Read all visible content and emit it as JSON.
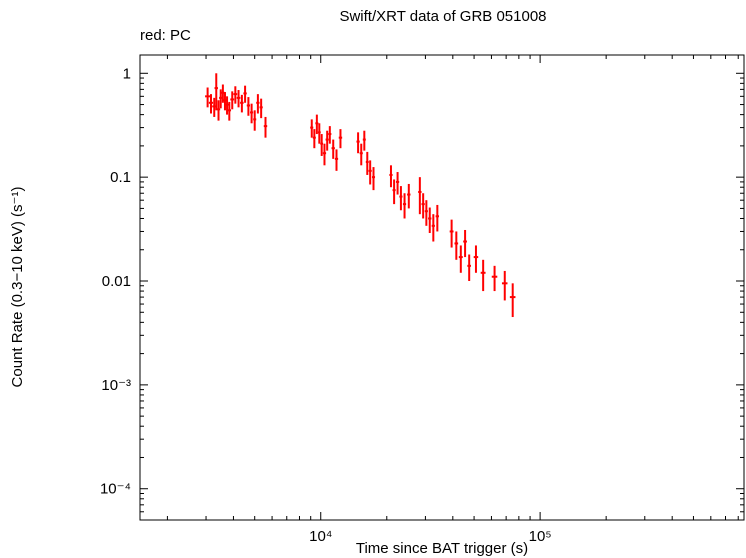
{
  "title": "Swift/XRT data of GRB 051008",
  "mode_label": "red: PC",
  "chart_data": {
    "type": "scatter",
    "title": "Swift/XRT data of GRB 051008",
    "xlabel": "Time since BAT trigger (s)",
    "ylabel": "Count Rate (0.3−10 keV) (s⁻¹)",
    "x_scale": "log",
    "y_scale": "log",
    "xlim": [
      1500,
      850000
    ],
    "ylim": [
      5e-05,
      1.5
    ],
    "grid": false,
    "legend_position": "top-left",
    "x_ticks": [
      {
        "value": 10000,
        "label": "10⁴"
      },
      {
        "value": 100000,
        "label": "10⁵"
      }
    ],
    "y_ticks": [
      {
        "value": 1,
        "label": "1"
      },
      {
        "value": 0.1,
        "label": "0.1"
      },
      {
        "value": 0.01,
        "label": "0.01"
      },
      {
        "value": 0.001,
        "label": "10⁻³"
      },
      {
        "value": 0.0001,
        "label": "10⁻⁴"
      }
    ],
    "point_format": [
      "time_s",
      "time_err_s",
      "count_rate",
      "count_rate_err"
    ],
    "series": [
      {
        "name": "PC",
        "color": "#ff0000",
        "points": [
          [
            3050,
            80,
            0.6,
            0.13
          ],
          [
            3160,
            70,
            0.52,
            0.11
          ],
          [
            3270,
            70,
            0.48,
            0.1
          ],
          [
            3340,
            60,
            0.72,
            0.28
          ],
          [
            3420,
            60,
            0.45,
            0.1
          ],
          [
            3500,
            60,
            0.58,
            0.12
          ],
          [
            3580,
            60,
            0.65,
            0.13
          ],
          [
            3660,
            60,
            0.55,
            0.11
          ],
          [
            3740,
            60,
            0.5,
            0.1
          ],
          [
            3830,
            70,
            0.44,
            0.09
          ],
          [
            3950,
            80,
            0.56,
            0.11
          ],
          [
            4080,
            80,
            0.63,
            0.12
          ],
          [
            4220,
            80,
            0.58,
            0.11
          ],
          [
            4370,
            80,
            0.52,
            0.1
          ],
          [
            4520,
            80,
            0.64,
            0.12
          ],
          [
            4680,
            80,
            0.49,
            0.1
          ],
          [
            4840,
            80,
            0.42,
            0.09
          ],
          [
            5000,
            80,
            0.36,
            0.08
          ],
          [
            5170,
            90,
            0.52,
            0.11
          ],
          [
            5350,
            90,
            0.47,
            0.1
          ],
          [
            5600,
            100,
            0.31,
            0.07
          ],
          [
            9100,
            150,
            0.3,
            0.06
          ],
          [
            9350,
            150,
            0.24,
            0.05
          ],
          [
            9600,
            150,
            0.33,
            0.07
          ],
          [
            9850,
            150,
            0.27,
            0.06
          ],
          [
            10100,
            150,
            0.21,
            0.05
          ],
          [
            10400,
            180,
            0.17,
            0.04
          ],
          [
            10700,
            180,
            0.23,
            0.05
          ],
          [
            11000,
            180,
            0.26,
            0.05
          ],
          [
            11400,
            200,
            0.19,
            0.04
          ],
          [
            11800,
            200,
            0.15,
            0.035
          ],
          [
            12300,
            220,
            0.24,
            0.05
          ],
          [
            14800,
            250,
            0.22,
            0.05
          ],
          [
            15300,
            250,
            0.17,
            0.04
          ],
          [
            15800,
            250,
            0.23,
            0.05
          ],
          [
            16300,
            250,
            0.14,
            0.035
          ],
          [
            16800,
            280,
            0.115,
            0.03
          ],
          [
            17400,
            280,
            0.1,
            0.025
          ],
          [
            20900,
            350,
            0.105,
            0.025
          ],
          [
            21600,
            350,
            0.075,
            0.02
          ],
          [
            22400,
            380,
            0.09,
            0.022
          ],
          [
            23200,
            380,
            0.065,
            0.017
          ],
          [
            24100,
            400,
            0.055,
            0.015
          ],
          [
            25200,
            450,
            0.068,
            0.018
          ],
          [
            28300,
            500,
            0.072,
            0.028
          ],
          [
            29300,
            500,
            0.055,
            0.015
          ],
          [
            30300,
            500,
            0.047,
            0.013
          ],
          [
            31400,
            550,
            0.04,
            0.011
          ],
          [
            32600,
            550,
            0.034,
            0.01
          ],
          [
            34000,
            600,
            0.042,
            0.012
          ],
          [
            39500,
            800,
            0.03,
            0.009
          ],
          [
            41500,
            800,
            0.023,
            0.007
          ],
          [
            43500,
            900,
            0.017,
            0.005
          ],
          [
            45500,
            900,
            0.024,
            0.007
          ],
          [
            47500,
            900,
            0.014,
            0.004
          ],
          [
            51000,
            1200,
            0.017,
            0.005
          ],
          [
            55000,
            1400,
            0.012,
            0.004
          ],
          [
            62000,
            1800,
            0.011,
            0.003
          ],
          [
            69000,
            2000,
            0.0095,
            0.003
          ],
          [
            75000,
            2200,
            0.007,
            0.0025
          ]
        ]
      }
    ]
  }
}
